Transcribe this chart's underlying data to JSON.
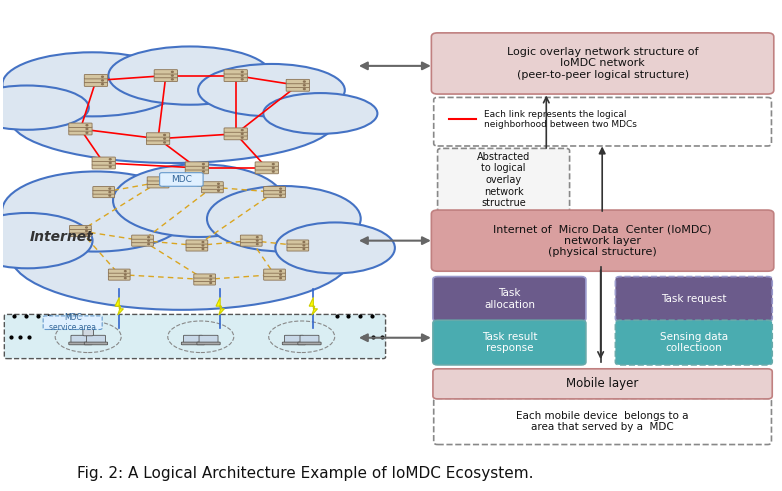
{
  "title": "Fig. 2: A Logical Architecture Example of IoMDC Ecosystem.",
  "title_fontsize": 11,
  "bg_color": "#ffffff",
  "cloud_top_color": "#dce6f1",
  "cloud_top_edge": "#4472c4",
  "cloud_mid_color": "#dce6f1",
  "cloud_mid_edge": "#4472c4",
  "mobile_layer_bg": "#daeef3",
  "mobile_layer_edge": "#000000",
  "box_logic_overlay_bg": "#e8d0d0",
  "box_logic_overlay_edge": "#c0504d",
  "box_logic_overlay_text": "Logic overlay network structure of\nIoMDC network\n(peer-to-peer logical structure)",
  "box_legend_text": "Each link represents the logical\nneighborhood between two MDCs",
  "box_abstracted_text": "Abstracted\nto logical\noverlay\nnetwork\nstructrue",
  "box_ioMDC_bg": "#d99f9f",
  "box_ioMDC_text": "Internet of  Micro Data  Center (IoMDC)\nnetwork layer\n(physical structure)",
  "box_task_alloc_bg": "#6b5b8b",
  "box_task_alloc_text": "Task\nallocation",
  "box_task_req_bg": "#6b5b8b",
  "box_task_req_text": "Task request",
  "box_task_result_bg": "#4aacb0",
  "box_task_result_text": "Task result\nresponse",
  "box_sensing_bg": "#4aacb0",
  "box_sensing_text": "Sensing data\ncollectioon",
  "box_mobile_bg": "#e8d0d0",
  "box_mobile_edge": "#c0504d",
  "box_mobile_text": "Mobile layer",
  "box_mobile_desc_text": "Each mobile device  belongs to a\narea that served by a  MDC",
  "internet_text": "Internet",
  "mdc_label_text": "MDC",
  "mdc_service_text": "MDC\nservice area",
  "red_link_color": "#ff0000",
  "yellow_link_color": "#daa520",
  "arrow_color": "#666666"
}
